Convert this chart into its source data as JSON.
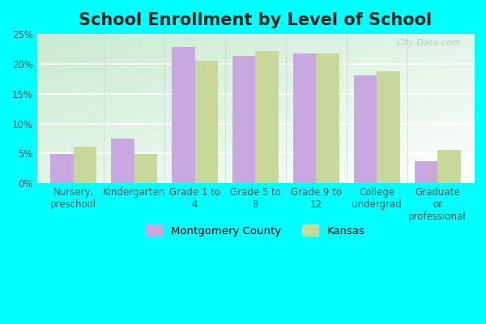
{
  "title": "School Enrollment by Level of School",
  "categories": [
    "Nursery,\npreschool",
    "Kindergarten",
    "Grade 1 to\n4",
    "Grade 5 to\n8",
    "Grade 9 to\n12",
    "College\nundergrad",
    "Graduate\nor\nprofessional"
  ],
  "montgomery_values": [
    4.9,
    7.5,
    22.9,
    21.4,
    21.7,
    18.1,
    3.7
  ],
  "kansas_values": [
    6.1,
    4.9,
    20.5,
    22.1,
    21.8,
    18.8,
    5.6
  ],
  "montgomery_color": "#C9A8E0",
  "kansas_color": "#C8D89A",
  "figure_bg_color": "#00FFFF",
  "ylim": [
    0,
    25
  ],
  "yticks": [
    0,
    5,
    10,
    15,
    20,
    25
  ],
  "ytick_labels": [
    "0%",
    "5%",
    "10%",
    "15%",
    "20%",
    "25%"
  ],
  "bar_width": 0.38,
  "legend_montgomery": "Montgomery County",
  "legend_kansas": "Kansas",
  "watermark": "City-Data.com",
  "title_fontsize": 15,
  "tick_fontsize": 8.5,
  "grid_color": "#ddeedc",
  "gradient_left_color": "#c8ebd0",
  "gradient_right_color": "#eefaee"
}
